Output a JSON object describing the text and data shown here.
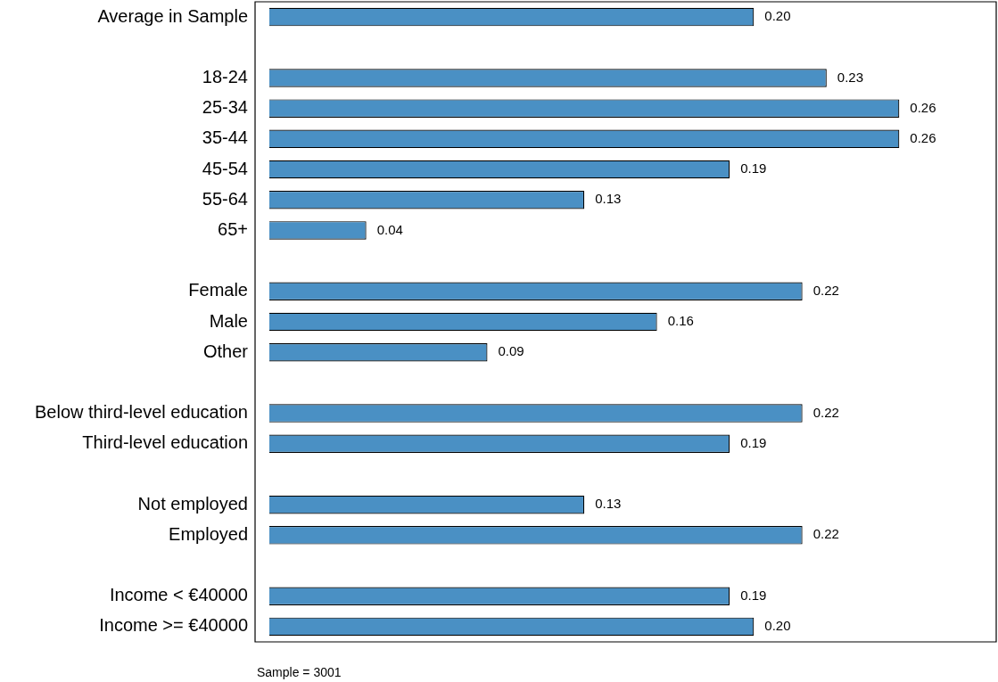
{
  "chart_data": {
    "type": "bar",
    "orientation": "horizontal",
    "categories": [
      "Average in Sample",
      null,
      "18-24",
      "25-34",
      "35-44",
      "45-54",
      "55-64",
      "65+",
      null,
      "Female",
      "Male",
      "Other",
      null,
      "Below third-level education",
      "Third-level education",
      null,
      "Not employed",
      "Employed",
      null,
      "Income < €40000",
      "Income >= €40000"
    ],
    "values": [
      0.2,
      null,
      0.23,
      0.26,
      0.26,
      0.19,
      0.13,
      0.04,
      null,
      0.22,
      0.16,
      0.09,
      null,
      0.22,
      0.19,
      null,
      0.13,
      0.22,
      null,
      0.19,
      0.2
    ],
    "color": "#4a90c4",
    "value_labels": [
      "0.20",
      null,
      "0.23",
      "0.26",
      "0.26",
      "0.19",
      "0.13",
      "0.04",
      null,
      "0.22",
      "0.16",
      "0.09",
      null,
      "0.22",
      "0.19",
      null,
      "0.13",
      "0.22",
      null,
      "0.19",
      "0.20"
    ],
    "grid": false,
    "annotations": [
      "Sample = 3001"
    ]
  }
}
